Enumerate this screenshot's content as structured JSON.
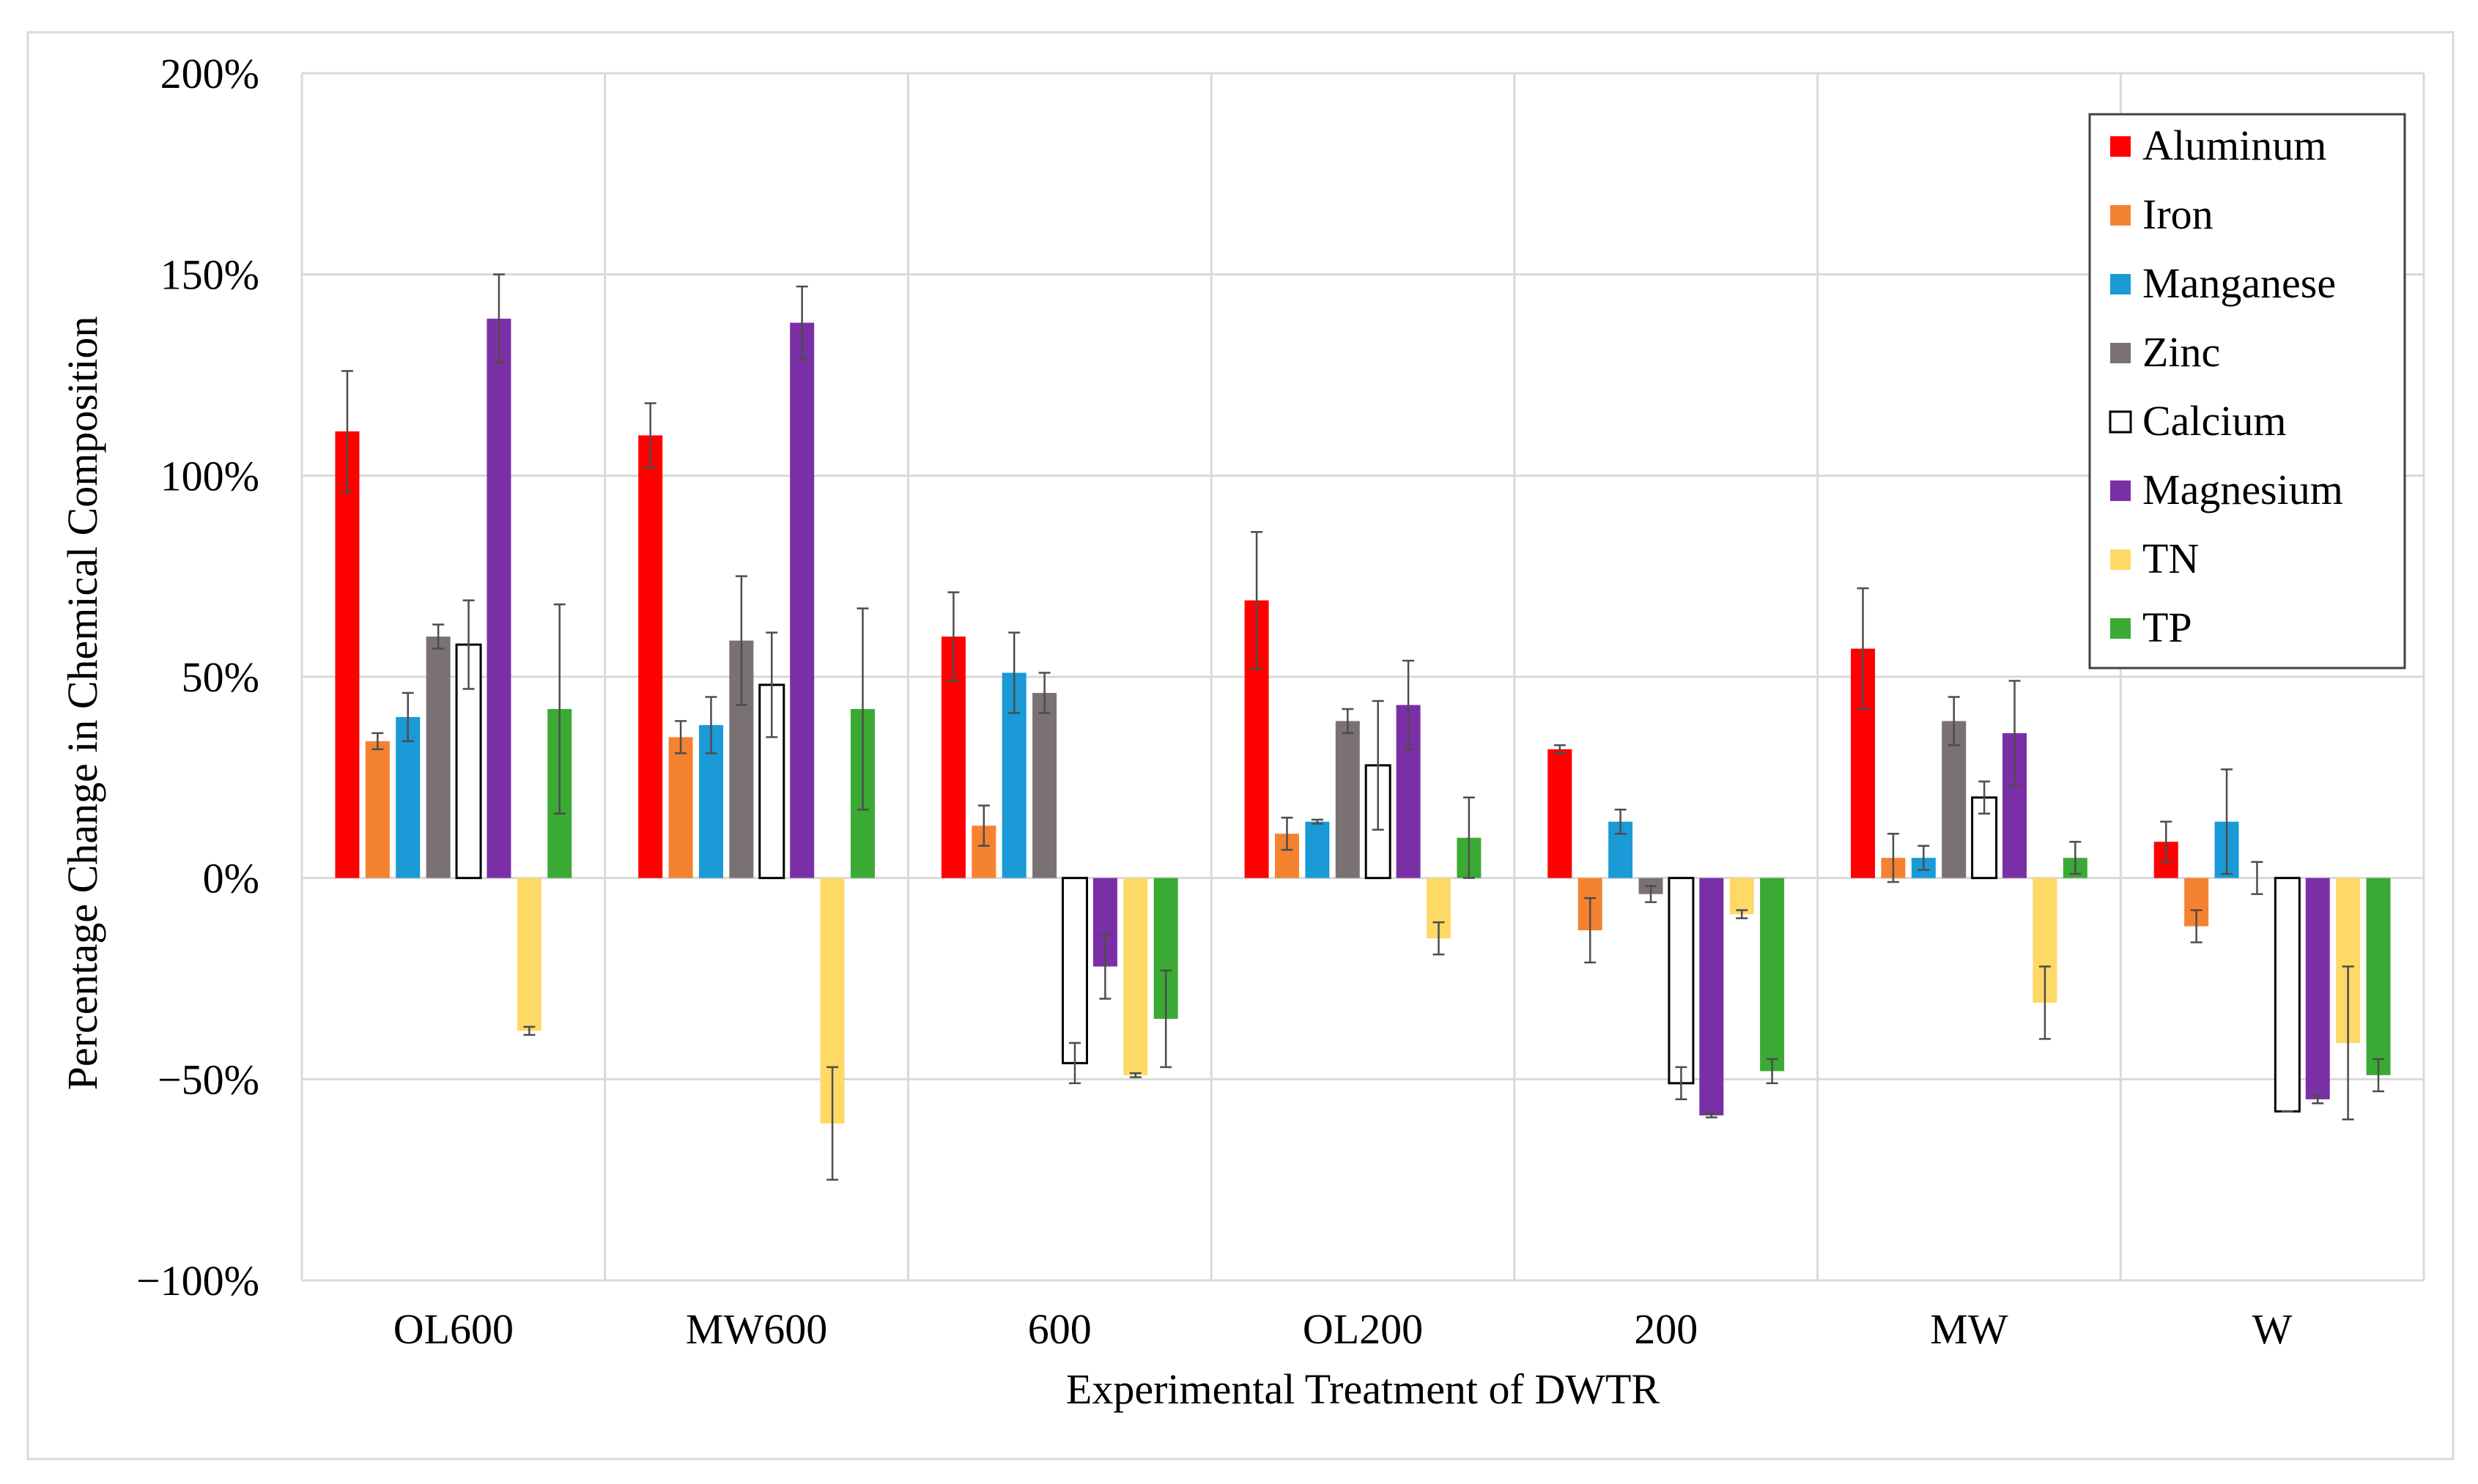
{
  "chart_data": {
    "type": "bar",
    "title": "",
    "xlabel": "Experimental Treatment of DWTR",
    "ylabel": "Percentage Change in Chemical Composition",
    "ylim": [
      -100,
      200
    ],
    "yticks": [
      200,
      150,
      100,
      50,
      0,
      -50,
      -100
    ],
    "ytick_labels": [
      "200%",
      "150%",
      "100%",
      "50%",
      "0%",
      "−50%",
      "−100%"
    ],
    "grid": true,
    "legend_position": "top-right",
    "categories": [
      "OL600",
      "MW600",
      "600",
      "OL200",
      "200",
      "MW",
      "W"
    ],
    "series": [
      {
        "name": "Aluminum",
        "color": "#ff0000",
        "stroke": "#ff0000",
        "values": [
          111,
          110,
          60,
          69,
          32,
          57,
          9
        ],
        "errors": [
          15,
          8,
          11,
          17,
          1,
          15,
          5
        ]
      },
      {
        "name": "Iron",
        "color": "#f58231",
        "stroke": "#f58231",
        "values": [
          34,
          35,
          13,
          11,
          -13,
          5,
          -12
        ],
        "errors": [
          2,
          4,
          5,
          4,
          8,
          6,
          4
        ]
      },
      {
        "name": "Manganese",
        "color": "#1a9ad6",
        "stroke": "#1a9ad6",
        "values": [
          40,
          38,
          51,
          14,
          14,
          5,
          14
        ],
        "errors": [
          6,
          7,
          10,
          0.5,
          3,
          3,
          13
        ]
      },
      {
        "name": "Zinc",
        "color": "#7a7272",
        "stroke": "#7a7272",
        "values": [
          60,
          59,
          46,
          39,
          -4,
          39,
          0
        ],
        "errors": [
          3,
          16,
          5,
          3,
          2,
          6,
          4
        ]
      },
      {
        "name": "Calcium",
        "color": "#ffffff",
        "stroke": "#000000",
        "values": [
          58,
          48,
          -46,
          28,
          -51,
          20,
          -58
        ],
        "errors": [
          11,
          13,
          5,
          16,
          4,
          4,
          0
        ]
      },
      {
        "name": "Magnesium",
        "color": "#7b2fa6",
        "stroke": "#7b2fa6",
        "values": [
          139,
          138,
          -22,
          43,
          -59,
          36,
          -55
        ],
        "errors": [
          11,
          9,
          8,
          11,
          0.5,
          13,
          1
        ]
      },
      {
        "name": "TN",
        "color": "#ffd966",
        "stroke": "#ffd966",
        "values": [
          -38,
          -61,
          -49,
          -15,
          -9,
          -31,
          -41
        ],
        "errors": [
          1,
          14,
          0.5,
          4,
          1,
          9,
          19
        ]
      },
      {
        "name": "TP",
        "color": "#3aaa35",
        "stroke": "#3aaa35",
        "values": [
          42,
          42,
          -35,
          10,
          -48,
          5,
          -49
        ],
        "errors": [
          26,
          25,
          12,
          10,
          3,
          4,
          4
        ]
      }
    ]
  }
}
